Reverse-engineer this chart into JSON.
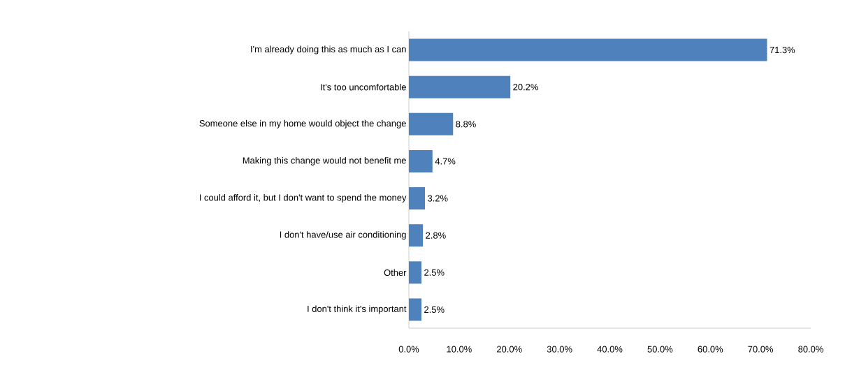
{
  "chart_data": {
    "type": "bar",
    "orientation": "horizontal",
    "categories": [
      "I'm already doing this as much as I can",
      "It's too uncomfortable",
      "Someone else in my home would object the change",
      "Making this change would not benefit me",
      "I could afford it, but I don't want to spend the money",
      "I don't have/use air conditioning",
      "Other",
      "I don't think it's important"
    ],
    "values": [
      71.3,
      20.2,
      8.8,
      4.7,
      3.2,
      2.8,
      2.5,
      2.5
    ],
    "value_labels": [
      "71.3%",
      "20.2%",
      "8.8%",
      "4.7%",
      "3.2%",
      "2.8%",
      "2.5%",
      "2.5%"
    ],
    "color": "#4f81bd",
    "xlim": [
      0,
      80
    ],
    "xticks": [
      {
        "value": 0,
        "label": "0.0%"
      },
      {
        "value": 10,
        "label": "10.0%"
      },
      {
        "value": 20,
        "label": "20.0%"
      },
      {
        "value": 30,
        "label": "30.0%"
      },
      {
        "value": 40,
        "label": "40.0%"
      },
      {
        "value": 50,
        "label": "50.0%"
      },
      {
        "value": 60,
        "label": "60.0%"
      },
      {
        "value": 70,
        "label": "70.0%"
      },
      {
        "value": 80,
        "label": "80.0%"
      }
    ],
    "grid": false
  }
}
